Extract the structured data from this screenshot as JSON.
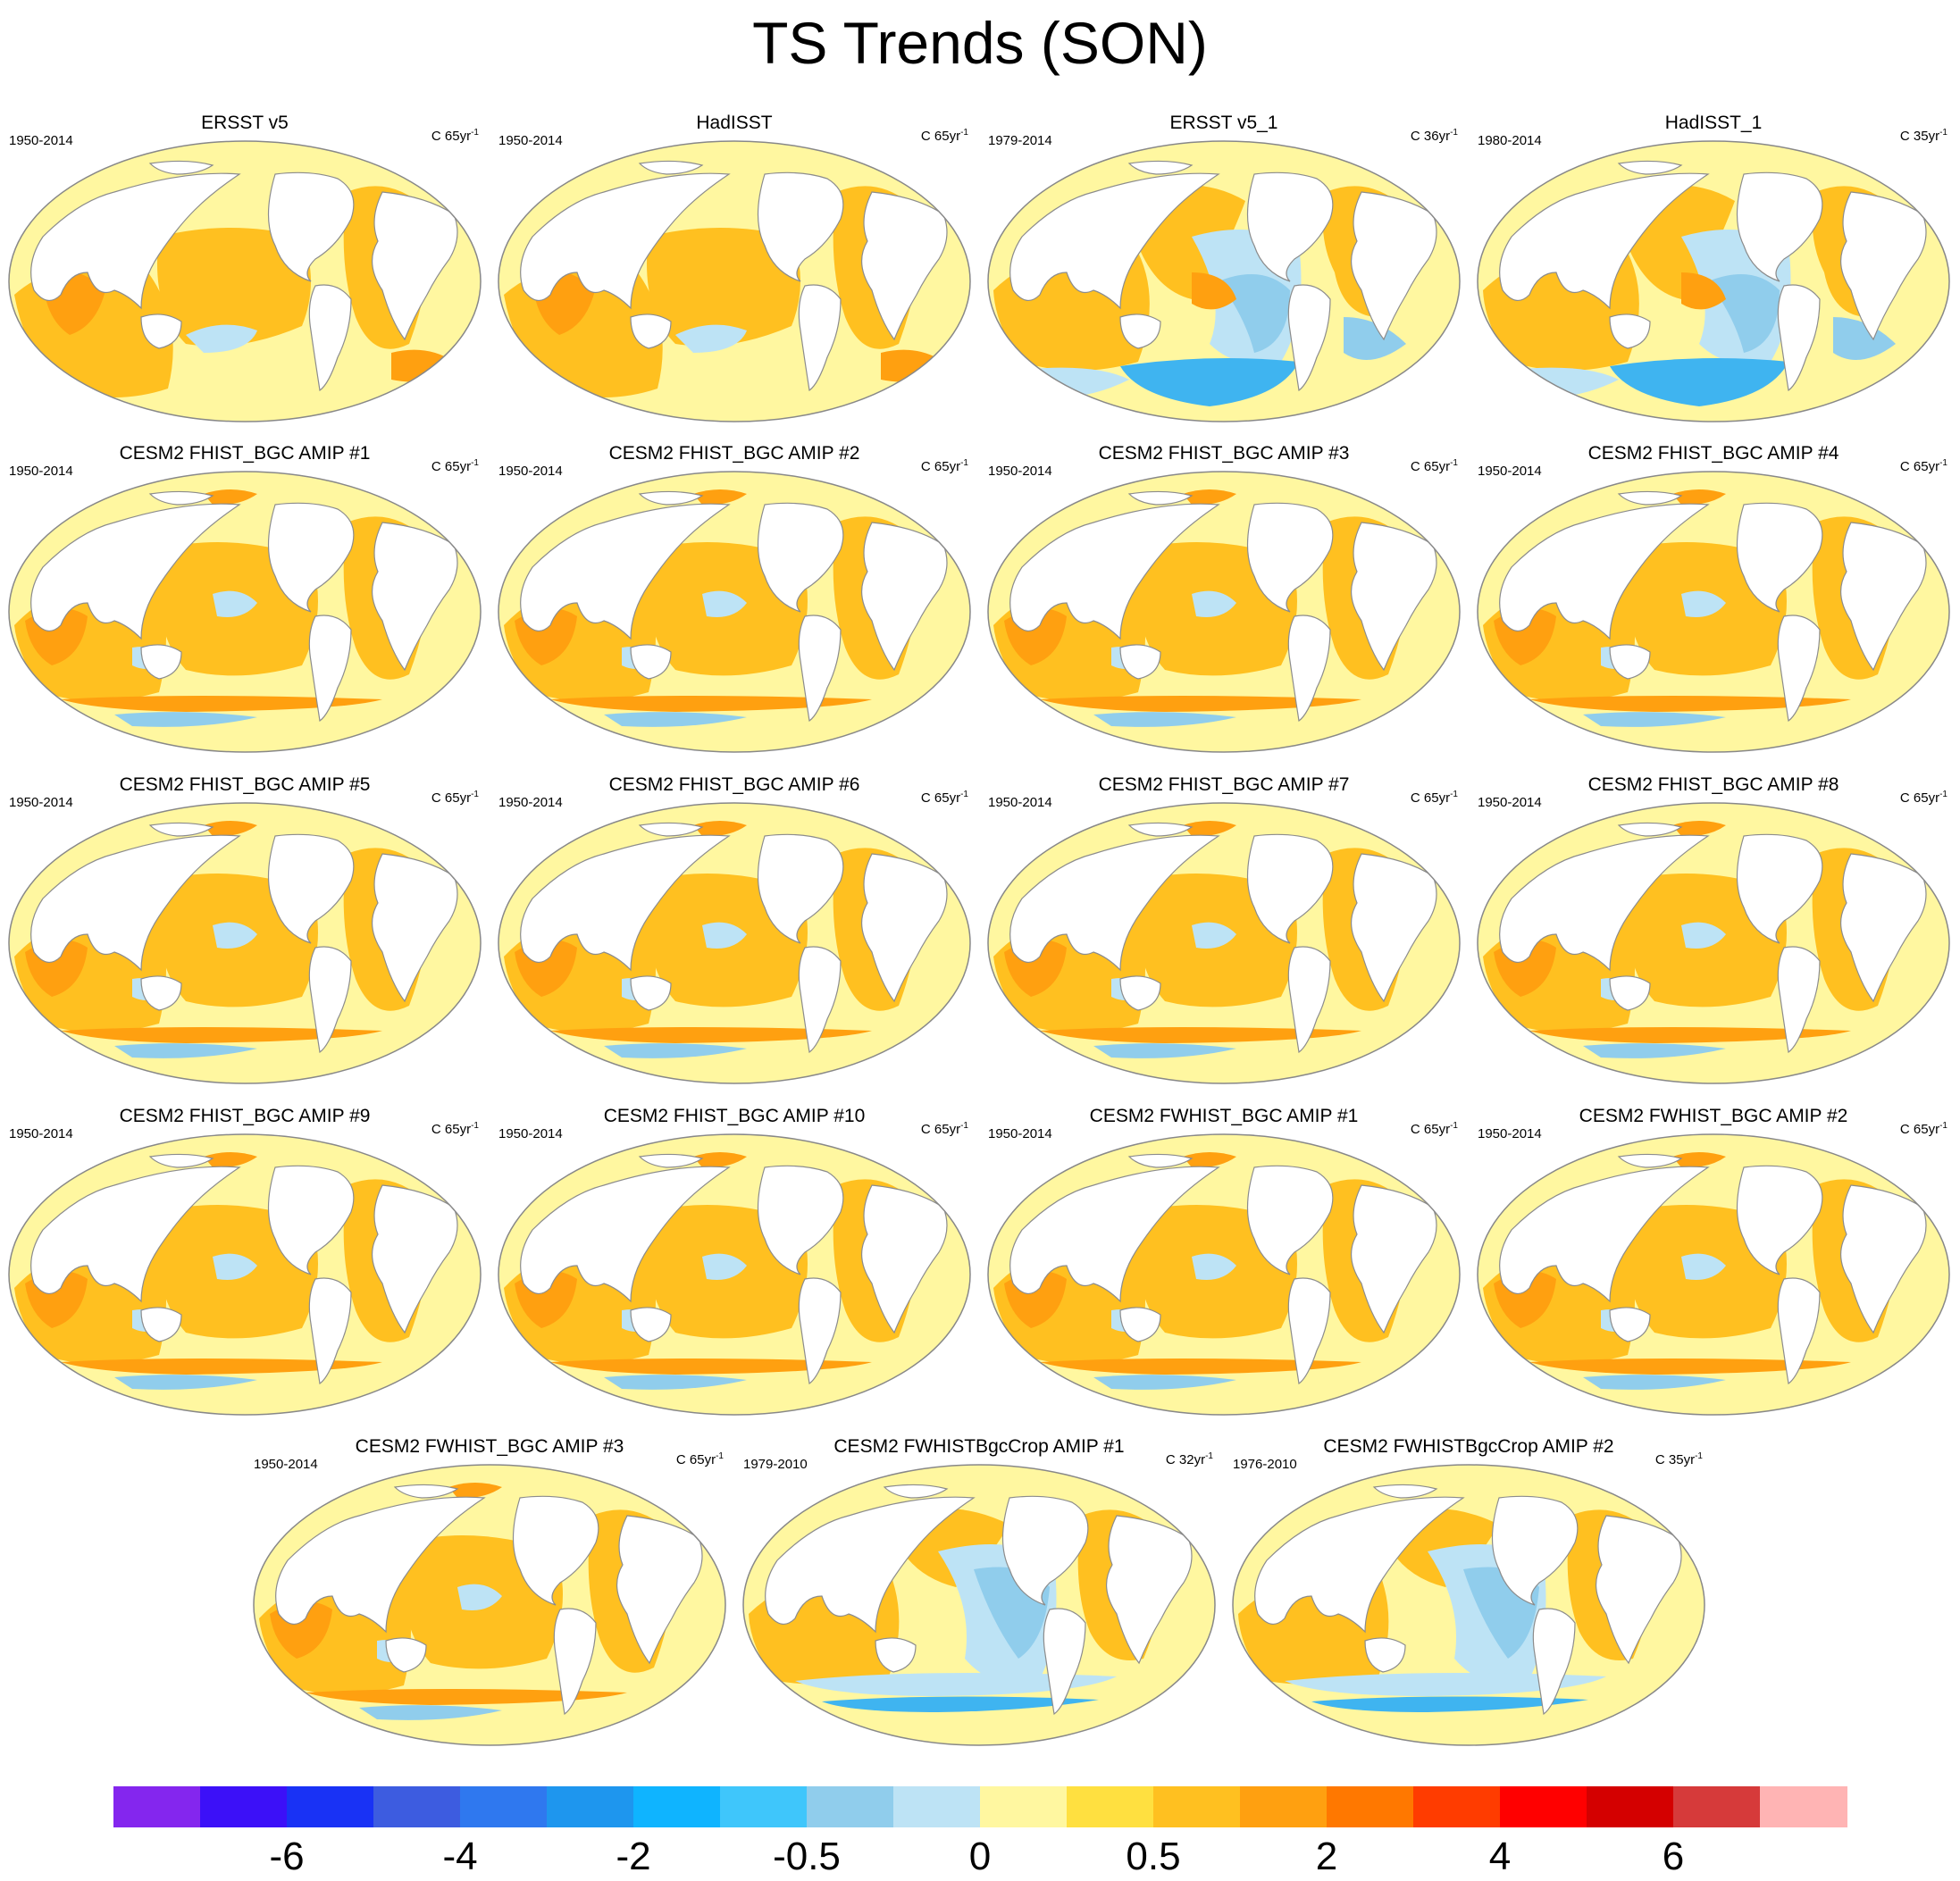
{
  "title": "TS Trends (SON)",
  "units_prefix": "C",
  "units_suffix": "yr",
  "units_exponent": "-1",
  "panels": [
    {
      "title": "ERSST v5",
      "period": "1950-2014",
      "years": "65",
      "pattern": "obs_long"
    },
    {
      "title": "HadISST",
      "period": "1950-2014",
      "years": "65",
      "pattern": "obs_long"
    },
    {
      "title": "ERSST v5_1",
      "period": "1979-2014",
      "years": "36",
      "pattern": "obs_recent"
    },
    {
      "title": "HadISST_1",
      "period": "1980-2014",
      "years": "35",
      "pattern": "obs_recent"
    },
    {
      "title": "CESM2 FHIST_BGC AMIP #1",
      "period": "1950-2014",
      "years": "65",
      "pattern": "model_long"
    },
    {
      "title": "CESM2 FHIST_BGC AMIP #2",
      "period": "1950-2014",
      "years": "65",
      "pattern": "model_long"
    },
    {
      "title": "CESM2 FHIST_BGC AMIP #3",
      "period": "1950-2014",
      "years": "65",
      "pattern": "model_long"
    },
    {
      "title": "CESM2 FHIST_BGC AMIP #4",
      "period": "1950-2014",
      "years": "65",
      "pattern": "model_long"
    },
    {
      "title": "CESM2 FHIST_BGC AMIP #5",
      "period": "1950-2014",
      "years": "65",
      "pattern": "model_long"
    },
    {
      "title": "CESM2 FHIST_BGC AMIP #6",
      "period": "1950-2014",
      "years": "65",
      "pattern": "model_long"
    },
    {
      "title": "CESM2 FHIST_BGC AMIP #7",
      "period": "1950-2014",
      "years": "65",
      "pattern": "model_long"
    },
    {
      "title": "CESM2 FHIST_BGC AMIP #8",
      "period": "1950-2014",
      "years": "65",
      "pattern": "model_long"
    },
    {
      "title": "CESM2 FHIST_BGC AMIP #9",
      "period": "1950-2014",
      "years": "65",
      "pattern": "model_long"
    },
    {
      "title": "CESM2 FHIST_BGC AMIP #10",
      "period": "1950-2014",
      "years": "65",
      "pattern": "model_long"
    },
    {
      "title": "CESM2 FWHIST_BGC AMIP #1",
      "period": "1950-2014",
      "years": "65",
      "pattern": "model_long"
    },
    {
      "title": "CESM2 FWHIST_BGC AMIP #2",
      "period": "1950-2014",
      "years": "65",
      "pattern": "model_long"
    },
    {
      "title": "CESM2 FWHIST_BGC AMIP #3",
      "period": "1950-2014",
      "years": "65",
      "pattern": "model_long"
    },
    {
      "title": "CESM2 FWHISTBgcCrop AMIP #1",
      "period": "1979-2010",
      "years": "32",
      "pattern": "model_recent"
    },
    {
      "title": "CESM2 FWHISTBgcCrop AMIP #2",
      "period": "1976-2010",
      "years": "35",
      "pattern": "model_recent"
    }
  ],
  "colors": {
    "land": "#ffffff",
    "coast": "#8c8c8c",
    "outline": "#888888",
    "light_yellow": "#fff7a0",
    "yellow": "#ffe040",
    "gold": "#ffc020",
    "orange": "#ffa010",
    "dark_orange": "#ff7800",
    "light_blue": "#bde3f5",
    "mid_blue": "#90cdec",
    "blue": "#3fb4f0",
    "deep_blue": "#1e96ee"
  },
  "colorbar": {
    "colors": [
      "#8426ee",
      "#3c10f8",
      "#1932f5",
      "#3d5ce0",
      "#2f78ef",
      "#1e96ee",
      "#0fb4ff",
      "#3fc6fb",
      "#90cdec",
      "#bde3f5",
      "#fff7a0",
      "#ffe040",
      "#ffc020",
      "#ffa010",
      "#ff7800",
      "#ff3c00",
      "#ff0000",
      "#d40000",
      "#d63a3a",
      "#ffb4b4"
    ],
    "labels": [
      "-6",
      "-4",
      "-2",
      "-0.5",
      "0",
      "0.5",
      "2",
      "4",
      "6"
    ],
    "label_boundaries": [
      2,
      4,
      6,
      8,
      10,
      12,
      14,
      16,
      18
    ]
  }
}
